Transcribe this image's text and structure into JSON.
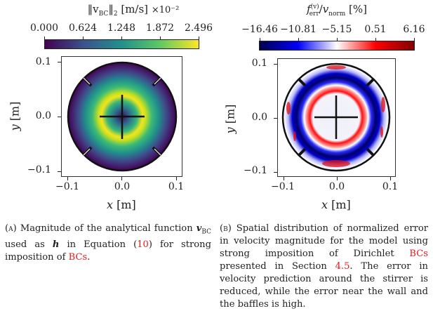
{
  "figure_a": {
    "colorbar": {
      "title_main": "‖v",
      "title_sub": "BC",
      "title_norm": "‖",
      "title_norm_sub": "2",
      "title_units": "[m/s]",
      "title_scale": "×10⁻²",
      "ticks": [
        "0.000",
        "0.624",
        "1.248",
        "1.872",
        "2.496"
      ],
      "colormap": "viridis",
      "colors": [
        "#440154",
        "#3b528b",
        "#21918c",
        "#5ec962",
        "#fde725"
      ]
    },
    "yticks": [
      "0.1",
      "0.0",
      "−0.1"
    ],
    "xticks": [
      "−0.1",
      "0.0",
      "0.1"
    ],
    "xlabel_var": "x",
    "xlabel_unit": "[m]",
    "ylabel_var": "y",
    "ylabel_unit": "[m]",
    "caption": {
      "label": "(a)",
      "t1": " Magnitude of the analytical function ",
      "v": "v",
      "vsub": "BC",
      "t2": " used as ",
      "h": "h",
      "t3": " in Equation (",
      "ref_eq": "10",
      "t4": ") for strong imposition of ",
      "ref_bc": "BCs",
      "t5": "."
    }
  },
  "figure_b": {
    "colorbar": {
      "title_f": "f",
      "title_f_sup": "(v)",
      "title_f_sub": "err",
      "title_slash": "/",
      "title_v": "v",
      "title_v_sub": "norm",
      "title_units": "[%]",
      "ticks": [
        "−16.46",
        "−10.81",
        "−5.15",
        "0.51",
        "6.16"
      ],
      "colormap": "seismic",
      "colors": [
        "#00004c",
        "#0000ff",
        "#ffffff",
        "#ff0000",
        "#800000"
      ]
    },
    "yticks": [
      "0.1",
      "0.0",
      "−0.1"
    ],
    "xticks": [
      "−0.1",
      "0.0",
      "0.1"
    ],
    "xlabel_var": "x",
    "xlabel_unit": "[m]",
    "ylabel_var": "y",
    "ylabel_unit": "[m]",
    "caption": {
      "label": "(b)",
      "t1": " Spatial distribution of normalized error in velocity magnitude for the model using strong imposition of Dirichlet ",
      "ref_bc": "BCs",
      "t2": " presented in Section ",
      "ref_sec": "4.5",
      "t3": ". The error in velocity prediction around the stirrer is reduced, while the error near the wall and the baffles is high."
    }
  },
  "chart_data": [
    {
      "type": "heatmap",
      "title": "‖v_BC‖_2 [m/s] ×10^-2",
      "xlabel": "x [m]",
      "ylabel": "y [m]",
      "xlim": [
        -0.11,
        0.11
      ],
      "ylim": [
        -0.11,
        0.11
      ],
      "xticks": [
        -0.1,
        0.0,
        0.1
      ],
      "yticks": [
        -0.1,
        0.0,
        0.1
      ],
      "colorbar_range": [
        0.0,
        2.496
      ],
      "colorbar_ticks": [
        0.0,
        0.624,
        1.248,
        1.872,
        2.496
      ],
      "colormap": "viridis",
      "domain": "circular tank radius 0.1 m with 4 baffles at 45°, cross-shaped stirrer of half-length ~0.04 m",
      "pattern": "radially symmetric; zero at center, peak (~2.496) ring at r≈0.04 m, decaying to 0 at wall r=0.1"
    },
    {
      "type": "heatmap",
      "title": "f_err^(v)/v_norm [%]",
      "xlabel": "x [m]",
      "ylabel": "y [m]",
      "xlim": [
        -0.11,
        0.11
      ],
      "ylim": [
        -0.11,
        0.11
      ],
      "xticks": [
        -0.1,
        0.0,
        0.1
      ],
      "yticks": [
        -0.1,
        0.0,
        0.1
      ],
      "colorbar_range": [
        -16.46,
        6.16
      ],
      "colorbar_ticks": [
        -16.46,
        -10.81,
        -5.15,
        0.51,
        6.16
      ],
      "colormap": "seismic",
      "pattern": "near-zero inside r<0.04; red ring (+) at r≈0.045; deep blue ring (≈-16) at r≈0.06-0.08; mixed red patches near wall"
    }
  ]
}
